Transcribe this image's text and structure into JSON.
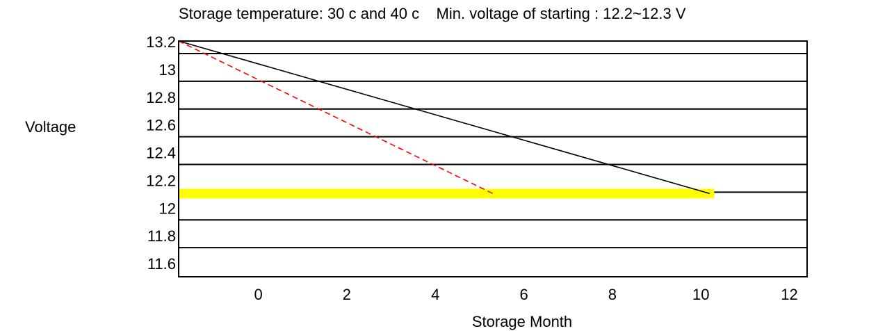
{
  "chart_data": {
    "type": "line",
    "title": "Storage temperature: 30 c and 40 c    Min. voltage of starting : 12.2~12.3 V",
    "xlabel": "Storage Month",
    "ylabel": "Voltage",
    "xlim": [
      -1.8,
      12.4
    ],
    "ylim": [
      11.5,
      13.2
    ],
    "xticks": [
      "0",
      "2",
      "4",
      "6",
      "8",
      "10",
      "12"
    ],
    "xtick_values": [
      0,
      2,
      4,
      6,
      8,
      10,
      12
    ],
    "yticks": [
      "13.2",
      "13",
      "12.8",
      "12.6",
      "12.4",
      "12.2",
      "12",
      "11.8",
      "11.6"
    ],
    "ytick_values": [
      13.2,
      13.0,
      12.8,
      12.6,
      12.4,
      12.2,
      12.0,
      11.8,
      11.6
    ],
    "grid": true,
    "series": [
      {
        "style": "solid",
        "color": "#000000",
        "x": [
          -1.8,
          10.2
        ],
        "y": [
          13.2,
          12.1
        ]
      },
      {
        "style": "dashed",
        "color": "#ff0000",
        "x": [
          -1.8,
          5.3
        ],
        "y": [
          13.2,
          12.1
        ]
      }
    ],
    "threshold_band": {
      "color": "#ffff00",
      "x": [
        -1.8,
        10.3
      ],
      "y": 12.1
    }
  }
}
